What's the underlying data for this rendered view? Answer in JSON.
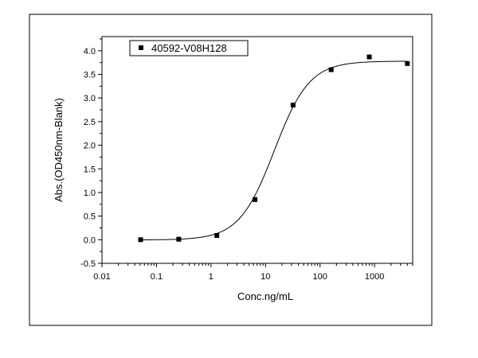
{
  "chart_data": {
    "type": "scatter",
    "title": "",
    "xlabel": "Conc.ng/mL",
    "ylabel": "Abs.(OD450nm-Blank)",
    "x_scale": "log",
    "xlim": [
      0.01,
      5000
    ],
    "ylim": [
      -0.5,
      4.3
    ],
    "x_ticks": [
      0.01,
      0.1,
      1,
      10,
      100,
      1000
    ],
    "x_tick_labels": [
      "0.01",
      "0.1",
      "1",
      "10",
      "100",
      "1000"
    ],
    "y_ticks": [
      -0.5,
      0.0,
      0.5,
      1.0,
      1.5,
      2.0,
      2.5,
      3.0,
      3.5,
      4.0
    ],
    "y_tick_labels": [
      "-0.5",
      "0.0",
      "0.5",
      "1.0",
      "1.5",
      "2.0",
      "2.5",
      "3.0",
      "3.5",
      "4.0"
    ],
    "grid": false,
    "legend": "top-left",
    "series": [
      {
        "name": "40592-V08H128",
        "marker": "square",
        "color": "#000000",
        "points": [
          {
            "x": 0.0512,
            "y": 0.0
          },
          {
            "x": 0.256,
            "y": 0.01
          },
          {
            "x": 1.28,
            "y": 0.09
          },
          {
            "x": 6.4,
            "y": 0.85
          },
          {
            "x": 32,
            "y": 2.85
          },
          {
            "x": 160,
            "y": 3.6
          },
          {
            "x": 800,
            "y": 3.87
          },
          {
            "x": 4000,
            "y": 3.73
          }
        ]
      }
    ],
    "fit_curve": {
      "type": "4PL",
      "bottom": -0.005,
      "top": 3.78,
      "ec50": 14.5,
      "hill": 1.35
    }
  }
}
